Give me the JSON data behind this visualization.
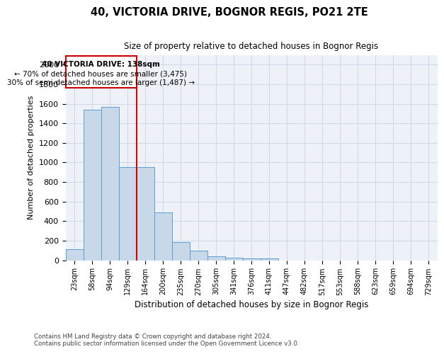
{
  "title_line1": "40, VICTORIA DRIVE, BOGNOR REGIS, PO21 2TE",
  "title_line2": "Size of property relative to detached houses in Bognor Regis",
  "xlabel": "Distribution of detached houses by size in Bognor Regis",
  "ylabel": "Number of detached properties",
  "categories": [
    "23sqm",
    "58sqm",
    "94sqm",
    "129sqm",
    "164sqm",
    "200sqm",
    "235sqm",
    "270sqm",
    "305sqm",
    "341sqm",
    "376sqm",
    "411sqm",
    "447sqm",
    "482sqm",
    "517sqm",
    "553sqm",
    "588sqm",
    "623sqm",
    "659sqm",
    "694sqm",
    "729sqm"
  ],
  "values": [
    110,
    1540,
    1565,
    950,
    950,
    490,
    185,
    100,
    40,
    28,
    18,
    18,
    0,
    0,
    0,
    0,
    0,
    0,
    0,
    0,
    0
  ],
  "bar_color": "#c8d8e8",
  "bar_edge_color": "#5a9fd4",
  "annotation_text_line1": "40 VICTORIA DRIVE: 138sqm",
  "annotation_text_line2": "← 70% of detached houses are smaller (3,475)",
  "annotation_text_line3": "30% of semi-detached houses are larger (1,487) →",
  "annotation_box_color": "#ffffff",
  "annotation_box_edge_color": "#cc0000",
  "vline_color": "#cc0000",
  "vline_x": 3.5,
  "grid_color": "#d0d8e8",
  "background_color": "#eef2f8",
  "footer_text": "Contains HM Land Registry data © Crown copyright and database right 2024.\nContains public sector information licensed under the Open Government Licence v3.0.",
  "ylim": [
    0,
    2100
  ],
  "yticks": [
    0,
    200,
    400,
    600,
    800,
    1000,
    1200,
    1400,
    1600,
    1800,
    2000
  ]
}
